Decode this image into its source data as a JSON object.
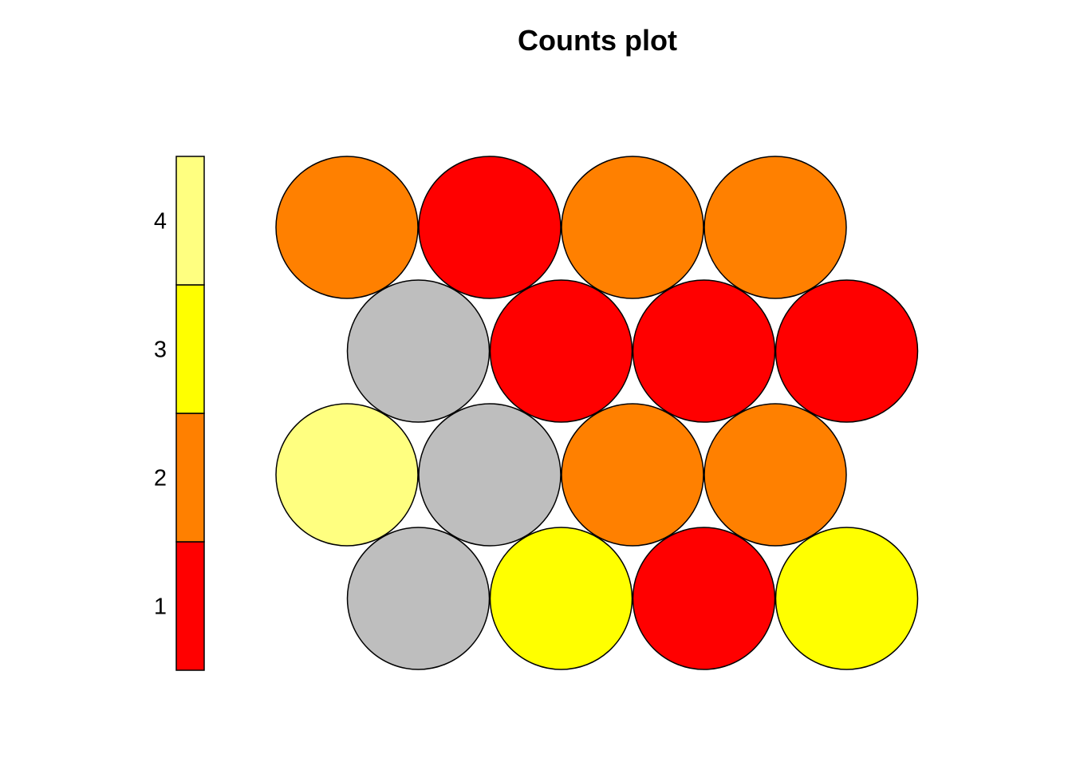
{
  "chart_data": {
    "type": "hexagonal-counts",
    "title": "Counts plot",
    "na_color": "#BEBEBE",
    "legend": {
      "levels": [
        1,
        2,
        3,
        4
      ],
      "labels": [
        "1",
        "2",
        "3",
        "4"
      ],
      "colors": [
        "#FF0000",
        "#FF8000",
        "#FFFF00",
        "#FFFF80"
      ],
      "placement": "left"
    },
    "grid": {
      "rows": 4,
      "cols": 5,
      "layout": "hexagonal"
    },
    "cells": [
      {
        "row": 1,
        "col": 1,
        "value": null
      },
      {
        "row": 1,
        "col": 2,
        "value": 3
      },
      {
        "row": 1,
        "col": 3,
        "value": 1
      },
      {
        "row": 1,
        "col": 4,
        "value": 3
      },
      {
        "row": 2,
        "col": 1,
        "value": 4
      },
      {
        "row": 2,
        "col": 2,
        "value": null
      },
      {
        "row": 2,
        "col": 3,
        "value": 2
      },
      {
        "row": 2,
        "col": 4,
        "value": 2
      },
      {
        "row": 3,
        "col": 1,
        "value": null
      },
      {
        "row": 3,
        "col": 2,
        "value": 1
      },
      {
        "row": 3,
        "col": 3,
        "value": 1
      },
      {
        "row": 3,
        "col": 4,
        "value": 1
      },
      {
        "row": 4,
        "col": 1,
        "value": 2
      },
      {
        "row": 4,
        "col": 2,
        "value": 1
      },
      {
        "row": 4,
        "col": 3,
        "value": 2
      },
      {
        "row": 4,
        "col": 4,
        "value": 2
      }
    ]
  }
}
